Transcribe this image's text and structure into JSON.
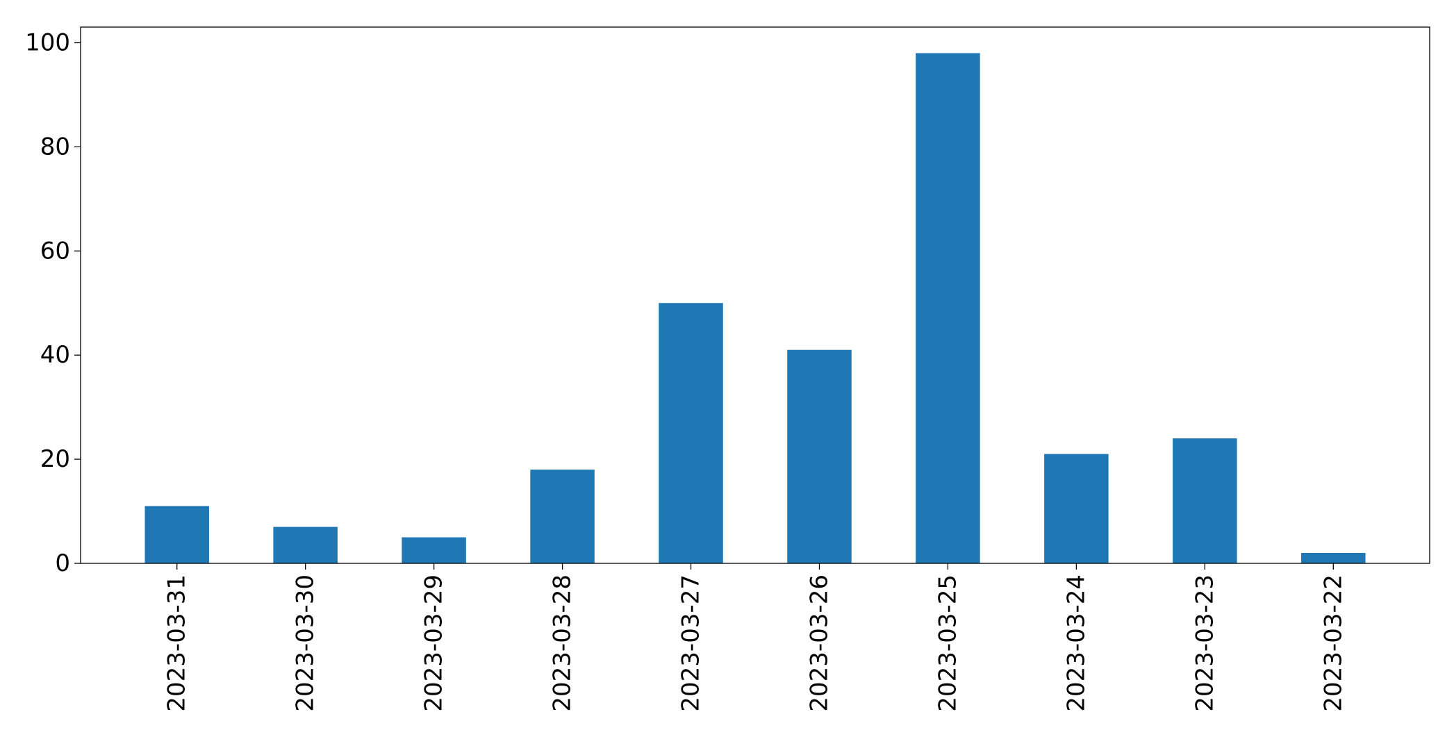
{
  "chart_data": {
    "type": "bar",
    "categories": [
      "2023-03-31",
      "2023-03-30",
      "2023-03-29",
      "2023-03-28",
      "2023-03-27",
      "2023-03-26",
      "2023-03-25",
      "2023-03-24",
      "2023-03-23",
      "2023-03-22"
    ],
    "values": [
      11,
      7,
      5,
      18,
      50,
      41,
      98,
      21,
      24,
      2
    ],
    "title": "",
    "xlabel": "",
    "ylabel": "",
    "ylim": [
      0,
      103
    ],
    "yticks": [
      0,
      20,
      40,
      60,
      80,
      100
    ],
    "grid": false,
    "legend": "none",
    "bar_color": "#1f77b4",
    "axis_color": "#000000"
  }
}
